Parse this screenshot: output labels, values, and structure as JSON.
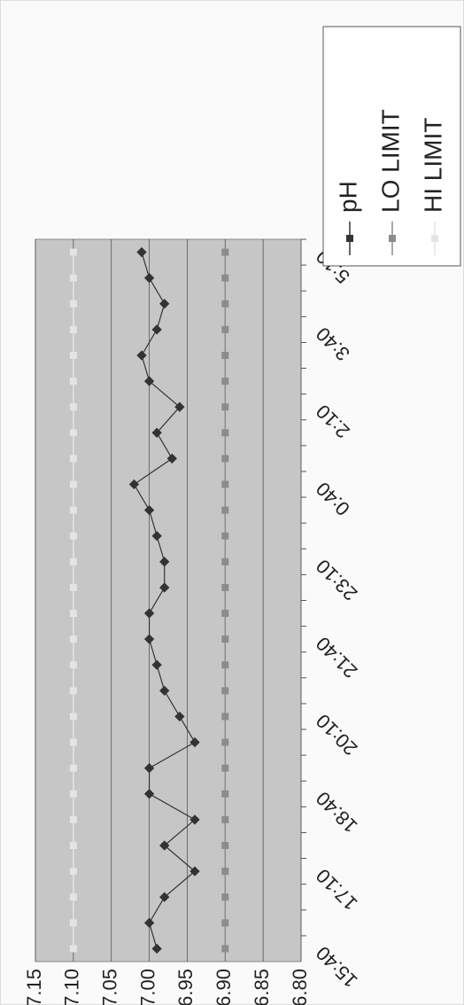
{
  "chart_data": {
    "type": "line",
    "categories": [
      "15:40",
      null,
      null,
      "17:10",
      null,
      null,
      "18:40",
      null,
      null,
      "20:10",
      null,
      null,
      "21:40",
      null,
      null,
      "23:10",
      null,
      null,
      "0:40",
      null,
      null,
      "2:10",
      null,
      null,
      "3:40",
      null,
      null,
      "5:10"
    ],
    "series": [
      {
        "name": "pH",
        "color": "#333333",
        "values": [
          6.99,
          7.0,
          6.98,
          6.94,
          6.98,
          6.94,
          7.0,
          7.0,
          6.94,
          6.96,
          6.98,
          6.99,
          7.0,
          7.0,
          6.98,
          6.98,
          6.99,
          7.0,
          7.02,
          6.97,
          6.99,
          6.96,
          7.0,
          7.01,
          6.99,
          6.98,
          7.0,
          7.01
        ]
      },
      {
        "name": "LO LIMIT",
        "color": "#8c8c8c",
        "values": [
          6.9,
          6.9,
          6.9,
          6.9,
          6.9,
          6.9,
          6.9,
          6.9,
          6.9,
          6.9,
          6.9,
          6.9,
          6.9,
          6.9,
          6.9,
          6.9,
          6.9,
          6.9,
          6.9,
          6.9,
          6.9,
          6.9,
          6.9,
          6.9,
          6.9,
          6.9,
          6.9,
          6.9
        ]
      },
      {
        "name": "HI LIMIT",
        "color": "#e4e4e4",
        "values": [
          7.1,
          7.1,
          7.1,
          7.1,
          7.1,
          7.1,
          7.1,
          7.1,
          7.1,
          7.1,
          7.1,
          7.1,
          7.1,
          7.1,
          7.1,
          7.1,
          7.1,
          7.1,
          7.1,
          7.1,
          7.1,
          7.1,
          7.1,
          7.1,
          7.1,
          7.1,
          7.1,
          7.1
        ]
      }
    ],
    "ylim": [
      6.8,
      7.15
    ],
    "yticks": [
      {
        "value": 6.8,
        "label": "6.80"
      },
      6.85,
      {
        "value": 6.9,
        "label": "6.90"
      },
      6.95,
      {
        "value": 7.0,
        "label": "7.00"
      },
      7.05,
      {
        "value": 7.1,
        "label": "7.10"
      },
      7.15
    ],
    "grid": true,
    "legend": "right"
  }
}
